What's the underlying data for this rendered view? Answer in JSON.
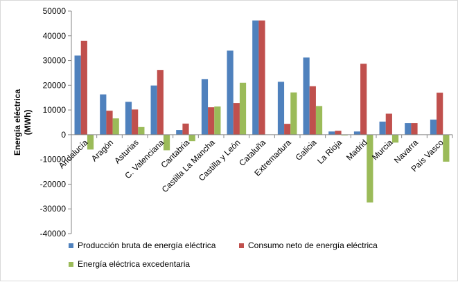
{
  "chart_data": {
    "type": "bar",
    "title": "",
    "xlabel": "",
    "ylabel": "Energía eléctrica (MWh)",
    "ylabel_lines": [
      "Energía eléctrica",
      "(MWh)"
    ],
    "ylim": [
      -40000,
      50000
    ],
    "yticks": [
      -40000,
      -30000,
      -20000,
      -10000,
      0,
      10000,
      20000,
      30000,
      40000,
      50000
    ],
    "grid": false,
    "legend_position": "bottom",
    "categories": [
      "Andalucía",
      "Aragón",
      "Asturias",
      "C. Valenciana",
      "Cantabria",
      "Castilla La Mancha",
      "Castilla y León",
      "Cataluña",
      "Extremadura",
      "Galicia",
      "La Rioja",
      "Madrid",
      "Murcia",
      "Navarra",
      "País Vasco"
    ],
    "series": [
      {
        "name": "Producción bruta de energía eléctrica",
        "color": "#4f81bd",
        "values": [
          32000,
          16300,
          13300,
          19900,
          1900,
          22500,
          34000,
          46200,
          21400,
          31200,
          1300,
          1300,
          5300,
          4700,
          6100
        ]
      },
      {
        "name": "Consumo neto de energía eléctrica",
        "color": "#c0504d",
        "values": [
          38000,
          9700,
          10200,
          26200,
          4500,
          11100,
          12800,
          46200,
          4400,
          19600,
          1600,
          28700,
          8500,
          4700,
          17000
        ]
      },
      {
        "name": "Energía eléctrica excedentaria",
        "color": "#9bbb59",
        "values": [
          -6000,
          6600,
          3100,
          -6300,
          -2600,
          11400,
          21000,
          0,
          17100,
          11600,
          -300,
          -27400,
          -3200,
          0,
          -10900
        ]
      }
    ]
  }
}
